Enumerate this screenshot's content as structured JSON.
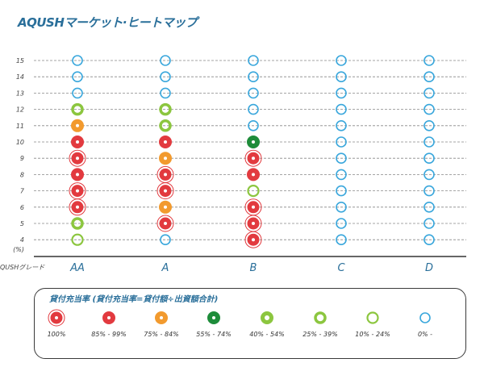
{
  "title": "AQUSHマーケット·ヒートマップ",
  "chart_data": {
    "type": "scatter",
    "x_axis_label": "QUSHグレード",
    "y_unit_label": "(%)",
    "categories": [
      "AA",
      "A",
      "B",
      "C",
      "D"
    ],
    "y_ticks": [
      4,
      5,
      6,
      7,
      8,
      9,
      10,
      11,
      12,
      13,
      14,
      15
    ],
    "cells": {
      "AA": [
        "l7",
        "l6",
        "l1",
        "l1",
        "l2",
        "l1",
        "l2",
        "l3",
        "l6",
        "l8",
        "l8",
        "l8"
      ],
      "A": [
        "l8",
        "l1",
        "l3",
        "l1",
        "l1",
        "l3",
        "l2",
        "l6",
        "l6",
        "l8",
        "l8",
        "l8"
      ],
      "B": [
        "l1",
        "l1",
        "l1",
        "l7",
        "l2",
        "l1",
        "l4",
        "l8",
        "l8",
        "l8",
        "l8",
        "l8"
      ],
      "C": [
        "l8",
        "l8",
        "l8",
        "l8",
        "l8",
        "l8",
        "l8",
        "l8",
        "l8",
        "l8",
        "l8",
        "l8"
      ],
      "D": [
        "l8",
        "l8",
        "l8",
        "l8",
        "l8",
        "l8",
        "l8",
        "l8",
        "l8",
        "l8",
        "l8",
        "l8"
      ]
    },
    "grid": "horizontal dashed"
  },
  "legend": {
    "title": "貸付充当率 (貸付充当率=貸付額÷出資額合計)",
    "items": [
      {
        "key": "l1",
        "label": "100%",
        "color": "#e23a3f",
        "style": "filled-ring"
      },
      {
        "key": "l2",
        "label": "85% - 99%",
        "color": "#e23a3f",
        "style": "filled"
      },
      {
        "key": "l3",
        "label": "75% - 84%",
        "color": "#f29a2e",
        "style": "filled"
      },
      {
        "key": "l4",
        "label": "55% - 74%",
        "color": "#1e8c3a",
        "style": "filled"
      },
      {
        "key": "l5",
        "label": "40% - 54%",
        "color": "#8cc63f",
        "style": "thick"
      },
      {
        "key": "l6",
        "label": "25% - 39%",
        "color": "#8cc63f",
        "style": "medium"
      },
      {
        "key": "l7",
        "label": "10% - 24%",
        "color": "#8cc63f",
        "style": "thin"
      },
      {
        "key": "l8",
        "label": "0% -",
        "color": "#3aa7dc",
        "style": "outline"
      }
    ]
  }
}
